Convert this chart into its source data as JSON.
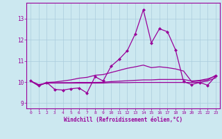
{
  "xlabel": "Windchill (Refroidissement éolien,°C)",
  "background_color": "#cce8f0",
  "line_color": "#990099",
  "grid_color": "#aaccdd",
  "xmin": -0.5,
  "xmax": 23.5,
  "ymin": 8.75,
  "ymax": 13.75,
  "yticks": [
    9,
    10,
    11,
    12,
    13
  ],
  "xticks": [
    0,
    1,
    2,
    3,
    4,
    5,
    6,
    7,
    8,
    9,
    10,
    11,
    12,
    13,
    14,
    15,
    16,
    17,
    18,
    19,
    20,
    21,
    22,
    23
  ],
  "line_spike": [
    10.05,
    9.82,
    9.98,
    9.65,
    9.62,
    9.68,
    9.72,
    9.48,
    10.25,
    10.05,
    10.75,
    11.08,
    11.48,
    12.28,
    13.42,
    11.85,
    12.52,
    12.38,
    11.52,
    10.02,
    9.88,
    9.98,
    9.85,
    10.28
  ],
  "line_upper": [
    10.05,
    9.82,
    9.98,
    10.0,
    10.05,
    10.1,
    10.18,
    10.22,
    10.32,
    10.35,
    10.45,
    10.55,
    10.65,
    10.72,
    10.8,
    10.68,
    10.72,
    10.68,
    10.62,
    10.52,
    10.02,
    10.05,
    10.1,
    10.32
  ],
  "line_mid": [
    10.05,
    9.88,
    9.95,
    9.96,
    9.97,
    9.97,
    9.98,
    9.98,
    9.98,
    9.99,
    10.02,
    10.04,
    10.06,
    10.08,
    10.1,
    10.1,
    10.12,
    10.12,
    10.12,
    10.12,
    10.05,
    10.08,
    10.15,
    10.28
  ],
  "line_flat": [
    10.05,
    9.85,
    9.95,
    9.95,
    9.95,
    9.95,
    9.95,
    9.95,
    9.95,
    9.95,
    9.97,
    9.97,
    9.97,
    9.98,
    9.98,
    9.98,
    9.98,
    9.98,
    9.98,
    9.98,
    9.98,
    9.98,
    10.05,
    10.2
  ],
  "markersize": 2.5
}
